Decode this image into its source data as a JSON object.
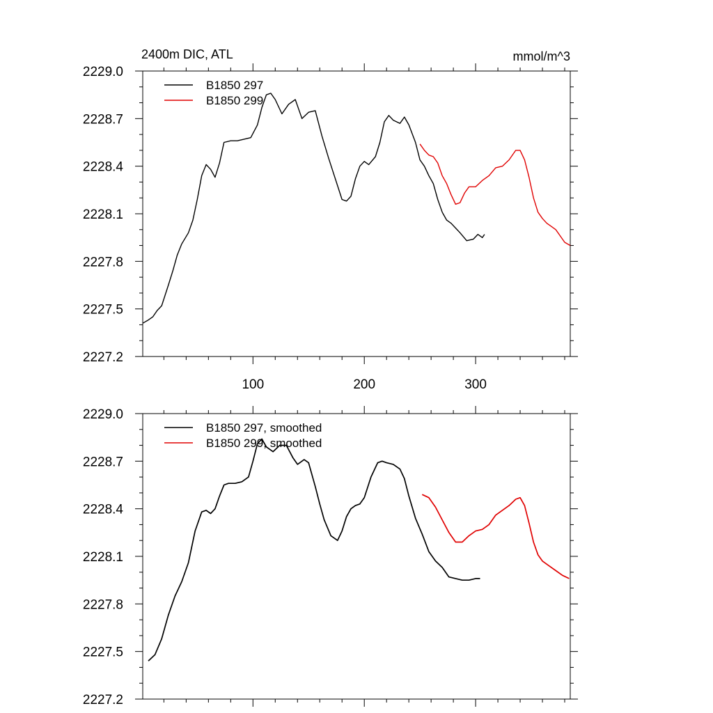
{
  "figure": {
    "left_title": "2400m DIC, ATL",
    "right_title": "mmol/m^3"
  },
  "colors": {
    "B1850 297": "#000000",
    "B1850 299": "#e00000"
  },
  "chart_data": [
    {
      "type": "line",
      "panel": "top",
      "title": "2400m DIC, ATL",
      "units": "mmol/m^3",
      "xlabel": "",
      "ylabel": "",
      "xlim": [
        1,
        385
      ],
      "ylim": [
        2227.2,
        2229.0
      ],
      "xticks": [
        100,
        200,
        300
      ],
      "xtick_labels": [
        "100",
        "200",
        "300"
      ],
      "yticks": [
        2227.2,
        2227.5,
        2227.8,
        2228.1,
        2228.4,
        2228.7,
        2229.0
      ],
      "ytick_labels": [
        "2227.2",
        "2227.5",
        "2227.8",
        "2228.1",
        "2228.4",
        "2228.7",
        "2229.0"
      ],
      "legend_position": "top-left",
      "series": [
        {
          "name": "B1850 297",
          "color": "#000000",
          "x": [
            1,
            6,
            10,
            14,
            18,
            24,
            28,
            32,
            36,
            42,
            46,
            50,
            54,
            58,
            62,
            66,
            70,
            74,
            80,
            86,
            92,
            98,
            104,
            108,
            112,
            116,
            120,
            126,
            132,
            138,
            144,
            150,
            156,
            162,
            168,
            174,
            180,
            184,
            188,
            192,
            196,
            200,
            204,
            210,
            214,
            218,
            222,
            226,
            232,
            236,
            240,
            246,
            250,
            254,
            258,
            262,
            266,
            270,
            274,
            278,
            282,
            286,
            292,
            298,
            302,
            306,
            308
          ],
          "values": [
            2227.41,
            2227.43,
            2227.45,
            2227.49,
            2227.52,
            2227.65,
            2227.74,
            2227.84,
            2227.91,
            2227.98,
            2228.06,
            2228.19,
            2228.34,
            2228.41,
            2228.38,
            2228.33,
            2228.42,
            2228.55,
            2228.56,
            2228.56,
            2228.57,
            2228.58,
            2228.66,
            2228.77,
            2228.85,
            2228.86,
            2228.82,
            2228.73,
            2228.79,
            2228.82,
            2228.7,
            2228.74,
            2228.75,
            2228.59,
            2228.45,
            2228.32,
            2228.19,
            2228.18,
            2228.21,
            2228.32,
            2228.4,
            2228.43,
            2228.41,
            2228.46,
            2228.55,
            2228.68,
            2228.72,
            2228.69,
            2228.67,
            2228.71,
            2228.66,
            2228.55,
            2228.44,
            2228.4,
            2228.34,
            2228.29,
            2228.19,
            2228.11,
            2228.06,
            2228.04,
            2228.01,
            2227.98,
            2227.93,
            2227.94,
            2227.97,
            2227.95,
            2227.97
          ]
        },
        {
          "name": "B1850 299",
          "color": "#e00000",
          "x": [
            250,
            254,
            258,
            262,
            266,
            270,
            274,
            278,
            282,
            286,
            290,
            294,
            300,
            306,
            312,
            318,
            324,
            330,
            336,
            340,
            344,
            348,
            352,
            356,
            360,
            364,
            368,
            372,
            376,
            380,
            385
          ],
          "values": [
            2228.54,
            2228.5,
            2228.47,
            2228.46,
            2228.42,
            2228.34,
            2228.29,
            2228.22,
            2228.16,
            2228.17,
            2228.23,
            2228.27,
            2228.27,
            2228.31,
            2228.34,
            2228.39,
            2228.4,
            2228.44,
            2228.5,
            2228.5,
            2228.44,
            2228.33,
            2228.2,
            2228.11,
            2228.07,
            2228.04,
            2228.02,
            2228.0,
            2227.96,
            2227.92,
            2227.9
          ]
        }
      ]
    },
    {
      "type": "line",
      "panel": "bottom",
      "title": "",
      "xlabel": "",
      "ylabel": "",
      "xlim": [
        1,
        385
      ],
      "ylim": [
        2227.2,
        2229.0
      ],
      "xticks": [
        100,
        200,
        300
      ],
      "xtick_labels": [],
      "yticks": [
        2227.2,
        2227.5,
        2227.8,
        2228.1,
        2228.4,
        2228.7,
        2229.0
      ],
      "ytick_labels": [
        "2227.2",
        "2227.5",
        "2227.8",
        "2228.1",
        "2228.4",
        "2228.7",
        "2229.0"
      ],
      "legend_position": "top-left",
      "series": [
        {
          "name": "B1850 297, smoothed",
          "color": "#000000",
          "x": [
            6,
            12,
            18,
            24,
            30,
            36,
            42,
            48,
            54,
            58,
            62,
            66,
            70,
            74,
            78,
            84,
            90,
            96,
            100,
            104,
            108,
            112,
            118,
            124,
            130,
            136,
            140,
            146,
            150,
            156,
            160,
            164,
            170,
            176,
            180,
            184,
            188,
            192,
            196,
            200,
            206,
            212,
            216,
            220,
            226,
            232,
            236,
            240,
            246,
            252,
            258,
            264,
            270,
            276,
            282,
            288,
            294,
            300,
            304
          ],
          "values": [
            2227.44,
            2227.48,
            2227.58,
            2227.73,
            2227.85,
            2227.94,
            2228.06,
            2228.26,
            2228.38,
            2228.39,
            2228.37,
            2228.4,
            2228.48,
            2228.55,
            2228.56,
            2228.56,
            2228.57,
            2228.6,
            2228.7,
            2228.81,
            2228.84,
            2228.79,
            2228.76,
            2228.8,
            2228.8,
            2228.72,
            2228.68,
            2228.71,
            2228.69,
            2228.54,
            2228.43,
            2228.33,
            2228.23,
            2228.2,
            2228.26,
            2228.35,
            2228.4,
            2228.42,
            2228.43,
            2228.47,
            2228.6,
            2228.69,
            2228.7,
            2228.69,
            2228.68,
            2228.65,
            2228.59,
            2228.48,
            2228.34,
            2228.24,
            2228.13,
            2228.07,
            2228.03,
            2227.97,
            2227.96,
            2227.95,
            2227.95,
            2227.96,
            2227.96
          ]
        },
        {
          "name": "B1850 299, smoothed",
          "color": "#e00000",
          "x": [
            252,
            258,
            264,
            270,
            276,
            282,
            288,
            294,
            300,
            306,
            312,
            318,
            324,
            330,
            336,
            340,
            344,
            348,
            352,
            356,
            360,
            366,
            372,
            378,
            384
          ],
          "values": [
            2228.49,
            2228.47,
            2228.41,
            2228.33,
            2228.25,
            2228.19,
            2228.19,
            2228.23,
            2228.26,
            2228.27,
            2228.3,
            2228.36,
            2228.39,
            2228.42,
            2228.46,
            2228.47,
            2228.42,
            2228.31,
            2228.19,
            2228.11,
            2228.07,
            2228.04,
            2228.01,
            2227.98,
            2227.96
          ]
        }
      ]
    }
  ]
}
